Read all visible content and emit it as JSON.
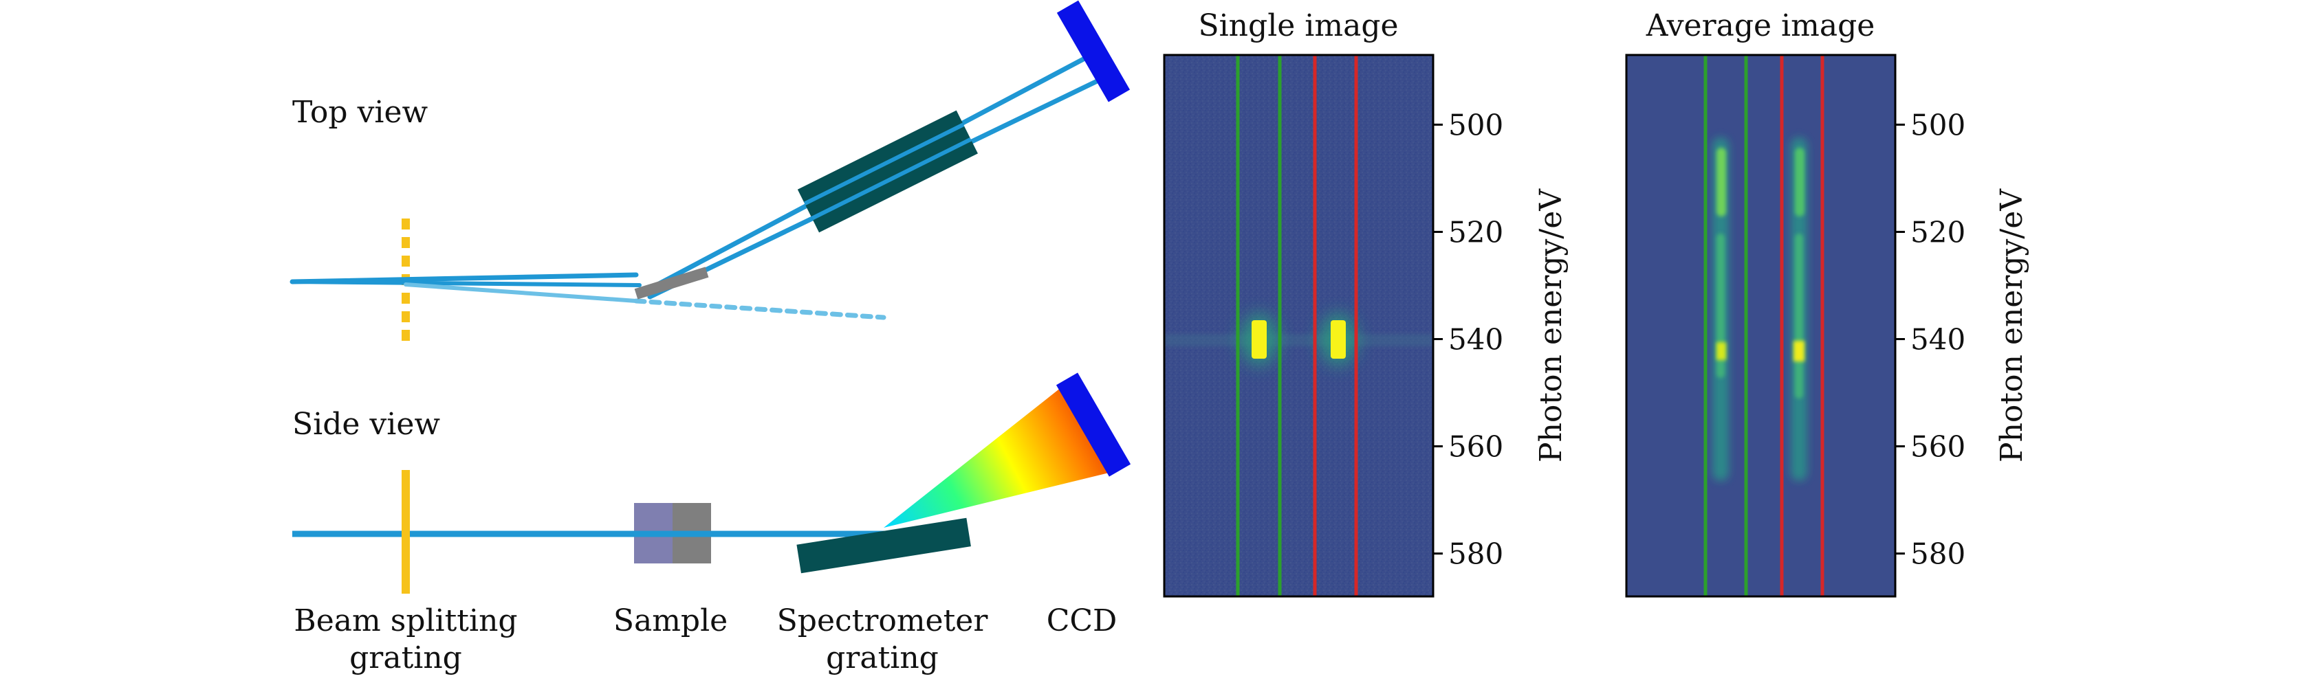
{
  "diagram": {
    "top_view_label": "Top view",
    "side_view_label": "Side view",
    "components": {
      "beam_splitting_grating": [
        "Beam splitting",
        "grating"
      ],
      "sample": "Sample",
      "spectrometer_grating": [
        "Spectrometer",
        "grating"
      ],
      "ccd": "CCD"
    },
    "colors": {
      "beam": "#1f97d4",
      "beam_light": "#6cc0e6",
      "grating_yellow": "#f6c21a",
      "spectrometer_dark": "#064f52",
      "ccd_blue": "#0a12e8",
      "sample_gray": "#7f7f7f",
      "sample_violet": "#7f7fb0"
    }
  },
  "panels": [
    {
      "title": "Single image",
      "ylabel": "Photon energy/eV",
      "yticks": [
        "500",
        "520",
        "540",
        "560",
        "580"
      ],
      "ylim": [
        487,
        588
      ],
      "lines": [
        {
          "color": "#2ca02c"
        },
        {
          "color": "#2ca02c"
        },
        {
          "color": "#d62728"
        },
        {
          "color": "#d62728"
        }
      ],
      "spots": [
        {
          "energy": 540,
          "intensity": "peak"
        },
        {
          "energy": 540,
          "intensity": "peak"
        }
      ]
    },
    {
      "title": "Average image",
      "ylabel": "Photon energy/eV",
      "yticks": [
        "500",
        "520",
        "540",
        "560",
        "580"
      ],
      "ylim": [
        487,
        588
      ],
      "lines": [
        {
          "color": "#2ca02c"
        },
        {
          "color": "#2ca02c"
        },
        {
          "color": "#d62728"
        },
        {
          "color": "#d62728"
        }
      ],
      "streaks": [
        {
          "energy_range": [
            505,
            565
          ],
          "peak_energy": 541
        },
        {
          "energy_range": [
            505,
            565
          ],
          "peak_energy": 541
        }
      ]
    }
  ],
  "background_color": "#3b4d8c"
}
